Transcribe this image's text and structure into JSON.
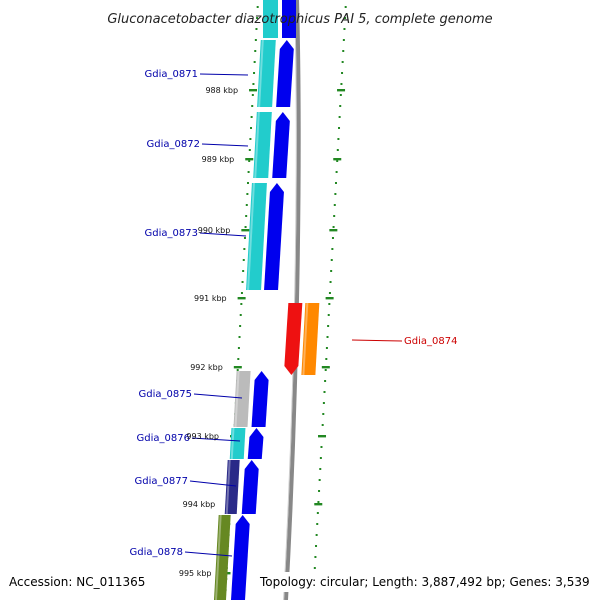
{
  "title": "Gluconacetobacter diazotrophicus PAI 5, complete genome",
  "footer": {
    "accession": "Accession: NC_011365",
    "topology": "Topology: circular; Length: 3,887,492 bp; Genes: 3,539"
  },
  "colors": {
    "blue": "#0000ee",
    "cyan": "#22cccc",
    "red": "#ee1111",
    "orange": "#ff8800",
    "gray": "#bbbbbb",
    "navy": "#2a2a88",
    "olive": "#668822",
    "tick": "#228822",
    "backbone": "#888888",
    "label_blue": "#0000aa",
    "label_red": "#cc0000"
  },
  "genes": [
    {
      "id": "Gdia_0871",
      "strand": "forward",
      "category": "cyan"
    },
    {
      "id": "Gdia_0872",
      "strand": "forward",
      "category": "cyan"
    },
    {
      "id": "Gdia_0873",
      "strand": "forward",
      "category": "cyan"
    },
    {
      "id": "Gdia_0874",
      "strand": "reverse",
      "category": "orange"
    },
    {
      "id": "Gdia_0875",
      "strand": "forward",
      "category": "gray"
    },
    {
      "id": "Gdia_0876",
      "strand": "forward",
      "category": "cyan"
    },
    {
      "id": "Gdia_0877",
      "strand": "forward",
      "category": "navy"
    },
    {
      "id": "Gdia_0878",
      "strand": "forward",
      "category": "olive"
    }
  ],
  "scale_labels": [
    "988 kbp",
    "989 kbp",
    "990 kbp",
    "991 kbp",
    "992 kbp",
    "993 kbp",
    "994 kbp",
    "995 kbp"
  ]
}
